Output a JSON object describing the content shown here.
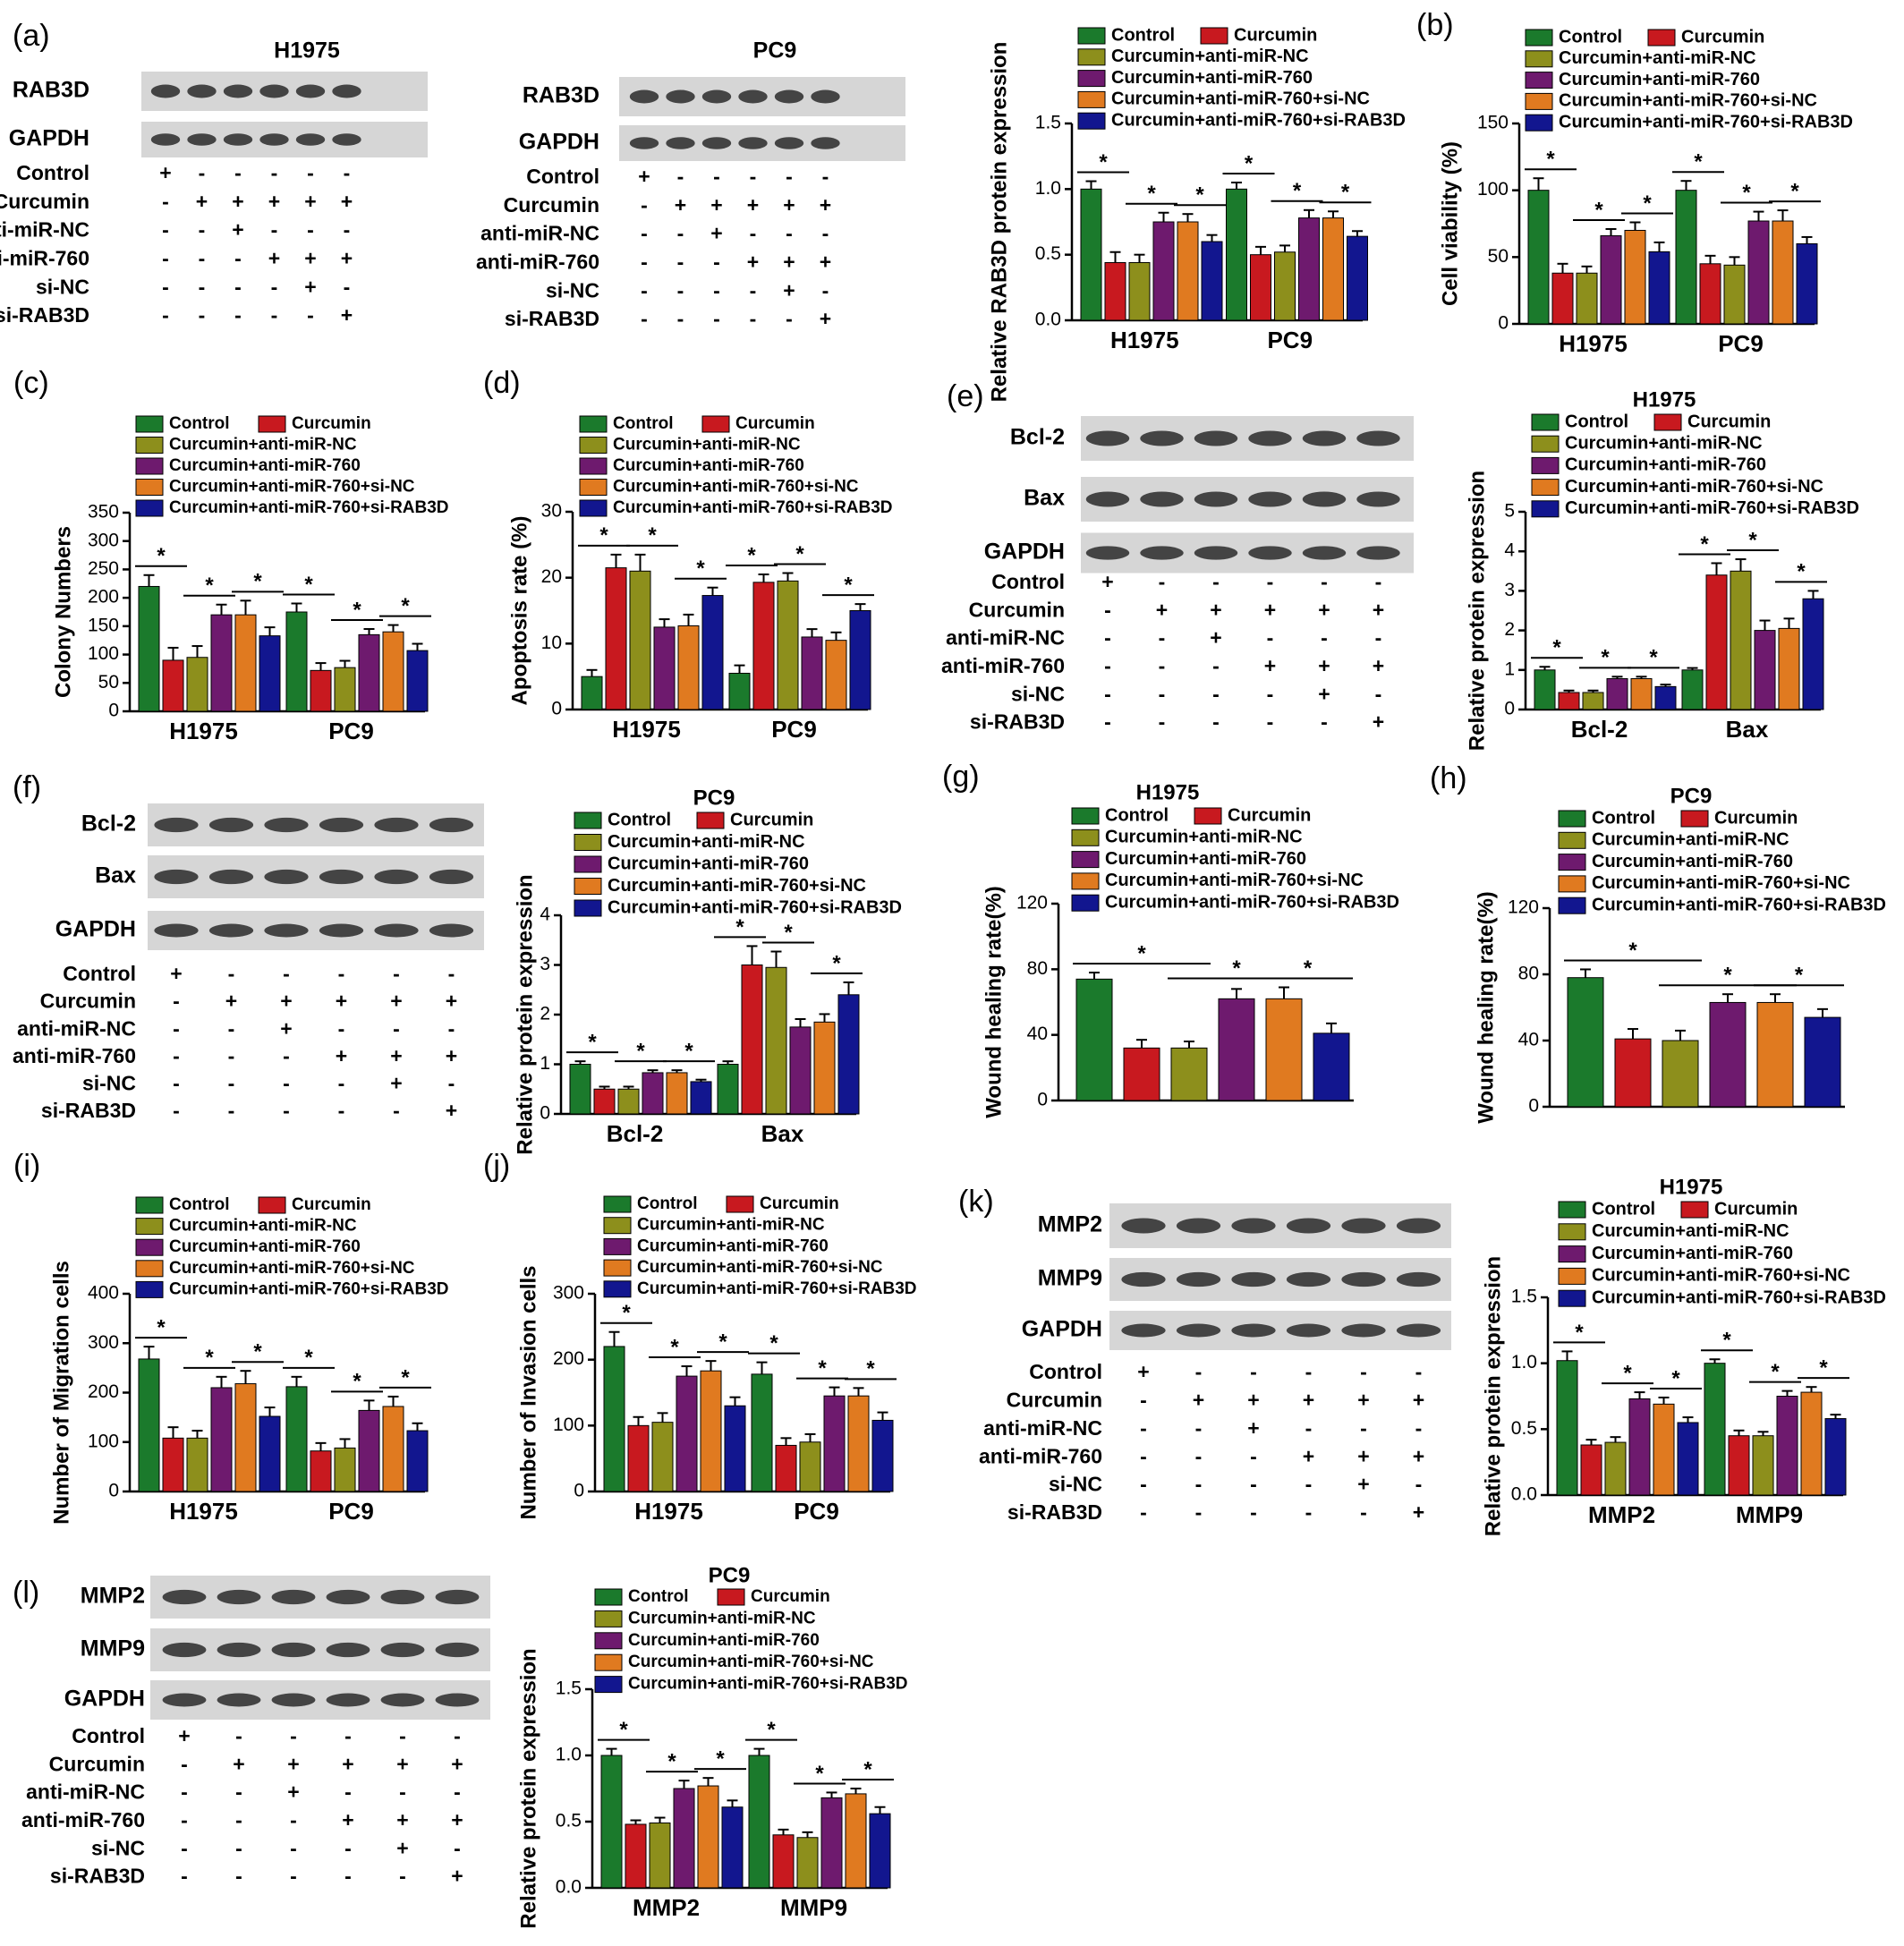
{
  "series_names": [
    "Control",
    "Curcumin",
    "Curcumin+anti-miR-NC",
    "Curcumin+anti-miR-760",
    "Curcumin+anti-miR-760+si-NC",
    "Curcumin+anti-miR-760+si-RAB3D"
  ],
  "colors": [
    "#1b7a2c",
    "#c8191f",
    "#8d8f1c",
    "#6e1a6e",
    "#e07a20",
    "#12168f"
  ],
  "wb_conditions": {
    "labels": [
      "Control",
      "Curcumin",
      "anti-miR-NC",
      "anti-miR-760",
      "si-NC",
      "si-RAB3D"
    ],
    "matrix": [
      [
        "+",
        "-",
        "-",
        "-",
        "-",
        "-"
      ],
      [
        "-",
        "+",
        "+",
        "+",
        "+",
        "+"
      ],
      [
        "-",
        "-",
        "+",
        "-",
        "-",
        "-"
      ],
      [
        "-",
        "-",
        "-",
        "+",
        "+",
        "+"
      ],
      [
        "-",
        "-",
        "-",
        "-",
        "+",
        "-"
      ],
      [
        "-",
        "-",
        "-",
        "-",
        "-",
        "+"
      ]
    ]
  },
  "blots": [
    {
      "letter": "(a)",
      "title": "H1975",
      "bands": [
        "RAB3D",
        "GAPDH"
      ]
    },
    {
      "letter": "",
      "title": "PC9",
      "bands": [
        "RAB3D",
        "GAPDH"
      ]
    },
    {
      "letter": "(e)",
      "title": "",
      "bands": [
        "Bcl-2",
        "Bax",
        "GAPDH"
      ]
    },
    {
      "letter": "(f)",
      "title": "",
      "bands": [
        "Bcl-2",
        "Bax",
        "GAPDH"
      ]
    },
    {
      "letter": "(k)",
      "title": "",
      "bands": [
        "MMP2",
        "MMP9",
        "GAPDH"
      ]
    },
    {
      "letter": "(l)",
      "title": "",
      "bands": [
        "MMP2",
        "MMP9",
        "GAPDH"
      ]
    }
  ],
  "chart_data": [
    {
      "id": "a-chart",
      "letter": "",
      "type": "bar",
      "title": "",
      "ylabel": "Relative RAB3D protein expression",
      "ylim": [
        0,
        1.5
      ],
      "yticks": [
        "0.0",
        "0.5",
        "1.0",
        "1.5"
      ],
      "categories": [
        "H1975",
        "PC9"
      ],
      "values": [
        [
          1.0,
          0.44,
          0.44,
          0.75,
          0.75,
          0.6
        ],
        [
          1.0,
          0.5,
          0.52,
          0.78,
          0.78,
          0.64
        ]
      ],
      "errors": [
        [
          0.06,
          0.08,
          0.06,
          0.07,
          0.06,
          0.05
        ],
        [
          0.05,
          0.06,
          0.05,
          0.06,
          0.05,
          0.04
        ]
      ]
    },
    {
      "id": "b",
      "letter": "(b)",
      "type": "bar",
      "title": "",
      "ylabel": "Cell viability (%)",
      "ylim": [
        0,
        150
      ],
      "yticks": [
        "0",
        "50",
        "100",
        "150"
      ],
      "categories": [
        "H1975",
        "PC9"
      ],
      "values": [
        [
          100,
          38,
          38,
          66,
          70,
          54
        ],
        [
          100,
          45,
          44,
          77,
          77,
          60
        ]
      ],
      "errors": [
        [
          9,
          7,
          5,
          5,
          6,
          7
        ],
        [
          7,
          6,
          6,
          7,
          8,
          5
        ]
      ]
    },
    {
      "id": "c",
      "letter": "(c)",
      "type": "bar",
      "title": "",
      "ylabel": "Colony Numbers",
      "ylim": [
        0,
        350
      ],
      "yticks": [
        "0",
        "50",
        "100",
        "150",
        "200",
        "250",
        "300",
        "350"
      ],
      "categories": [
        "H1975",
        "PC9"
      ],
      "values": [
        [
          220,
          90,
          95,
          170,
          170,
          133
        ],
        [
          175,
          72,
          77,
          135,
          140,
          107
        ]
      ],
      "errors": [
        [
          20,
          22,
          20,
          18,
          25,
          15
        ],
        [
          15,
          13,
          12,
          10,
          12,
          12
        ]
      ]
    },
    {
      "id": "d",
      "letter": "(d)",
      "type": "bar",
      "title": "",
      "ylabel": "Apoptosis rate (%)",
      "ylim": [
        0,
        30
      ],
      "yticks": [
        "0",
        "10",
        "20",
        "30"
      ],
      "categories": [
        "H1975",
        "PC9"
      ],
      "values": [
        [
          5,
          21.5,
          21,
          12.5,
          12.7,
          17.3
        ],
        [
          5.5,
          19.3,
          19.5,
          11,
          10.5,
          15
        ]
      ],
      "errors": [
        [
          1,
          2,
          2.5,
          1.2,
          1.7,
          1.2
        ],
        [
          1.2,
          1.2,
          1.2,
          1.2,
          1.2,
          1
        ]
      ]
    },
    {
      "id": "e-chart",
      "letter": "",
      "type": "bar",
      "title": "H1975",
      "ylabel": "Relative protein expression",
      "ylim": [
        0,
        5
      ],
      "yticks": [
        "0",
        "1",
        "2",
        "3",
        "4",
        "5"
      ],
      "categories": [
        "Bcl-2",
        "Bax"
      ],
      "values": [
        [
          1.0,
          0.43,
          0.43,
          0.78,
          0.78,
          0.58
        ],
        [
          1.0,
          3.4,
          3.5,
          2.0,
          2.05,
          2.8
        ]
      ],
      "errors": [
        [
          0.08,
          0.05,
          0.05,
          0.05,
          0.05,
          0.05
        ],
        [
          0.05,
          0.3,
          0.3,
          0.25,
          0.25,
          0.2
        ]
      ]
    },
    {
      "id": "f-chart",
      "letter": "",
      "type": "bar",
      "title": "PC9",
      "ylabel": "Relative protein expression",
      "ylim": [
        0,
        4
      ],
      "yticks": [
        "0",
        "1",
        "2",
        "3",
        "4"
      ],
      "categories": [
        "Bcl-2",
        "Bax"
      ],
      "values": [
        [
          1.0,
          0.5,
          0.5,
          0.83,
          0.83,
          0.65
        ],
        [
          1.0,
          3.0,
          2.95,
          1.75,
          1.85,
          2.4
        ]
      ],
      "errors": [
        [
          0.06,
          0.05,
          0.05,
          0.05,
          0.05,
          0.04
        ],
        [
          0.06,
          0.38,
          0.32,
          0.16,
          0.16,
          0.25
        ]
      ]
    },
    {
      "id": "g",
      "letter": "(g)",
      "type": "bar",
      "title": "H1975",
      "ylabel": "Wound healing rate(%)",
      "ylim": [
        0,
        120
      ],
      "yticks": [
        "0",
        "40",
        "80",
        "120"
      ],
      "categories": [],
      "values": [
        [
          74,
          32,
          32,
          62,
          62,
          41
        ]
      ],
      "errors": [
        [
          4,
          5,
          4,
          6,
          7,
          6
        ]
      ]
    },
    {
      "id": "h",
      "letter": "(h)",
      "type": "bar",
      "title": "PC9",
      "ylabel": "Wound healing rate(%)",
      "ylim": [
        0,
        120
      ],
      "yticks": [
        "0",
        "40",
        "80",
        "120"
      ],
      "categories": [],
      "values": [
        [
          78,
          41,
          40,
          63,
          63,
          54
        ]
      ],
      "errors": [
        [
          5,
          6,
          6,
          5,
          5,
          5
        ]
      ]
    },
    {
      "id": "i",
      "letter": "(i)",
      "type": "bar",
      "title": "",
      "ylabel": "Number of Migration cells",
      "ylim": [
        0,
        400
      ],
      "yticks": [
        "0",
        "100",
        "200",
        "300",
        "400"
      ],
      "categories": [
        "H1975",
        "PC9"
      ],
      "values": [
        [
          268,
          108,
          108,
          210,
          218,
          152
        ],
        [
          212,
          82,
          88,
          164,
          172,
          123
        ]
      ],
      "errors": [
        [
          25,
          22,
          15,
          22,
          26,
          18
        ],
        [
          20,
          16,
          18,
          20,
          20,
          15
        ]
      ]
    },
    {
      "id": "j",
      "letter": "(j)",
      "type": "bar",
      "title": "",
      "ylabel": "Number of Invasion cells",
      "ylim": [
        0,
        300
      ],
      "yticks": [
        "0",
        "100",
        "200",
        "300"
      ],
      "categories": [
        "H1975",
        "PC9"
      ],
      "values": [
        [
          220,
          100,
          105,
          175,
          183,
          130
        ],
        [
          178,
          70,
          75,
          145,
          145,
          108
        ]
      ],
      "errors": [
        [
          22,
          13,
          14,
          15,
          15,
          13
        ],
        [
          18,
          11,
          12,
          13,
          12,
          12
        ]
      ]
    },
    {
      "id": "k-chart",
      "letter": "",
      "type": "bar",
      "title": "H1975",
      "ylabel": "Relative protein expression",
      "ylim": [
        0,
        1.5
      ],
      "yticks": [
        "0.0",
        "0.5",
        "1.0",
        "1.5"
      ],
      "categories": [
        "MMP2",
        "MMP9"
      ],
      "values": [
        [
          1.02,
          0.38,
          0.4,
          0.73,
          0.69,
          0.55
        ],
        [
          1.0,
          0.45,
          0.45,
          0.75,
          0.78,
          0.58
        ]
      ],
      "errors": [
        [
          0.07,
          0.04,
          0.04,
          0.05,
          0.05,
          0.04
        ],
        [
          0.03,
          0.04,
          0.03,
          0.04,
          0.04,
          0.03
        ]
      ]
    },
    {
      "id": "l-chart",
      "letter": "",
      "type": "bar",
      "title": "PC9",
      "ylabel": "Relative protein expression",
      "ylim": [
        0,
        1.5
      ],
      "yticks": [
        "0.0",
        "0.5",
        "1.0",
        "1.5"
      ],
      "categories": [
        "MMP2",
        "MMP9"
      ],
      "values": [
        [
          1.0,
          0.48,
          0.49,
          0.75,
          0.77,
          0.61
        ],
        [
          1.0,
          0.4,
          0.38,
          0.68,
          0.71,
          0.56
        ]
      ],
      "errors": [
        [
          0.05,
          0.03,
          0.04,
          0.06,
          0.06,
          0.05
        ],
        [
          0.05,
          0.04,
          0.04,
          0.04,
          0.04,
          0.05
        ]
      ]
    }
  ]
}
